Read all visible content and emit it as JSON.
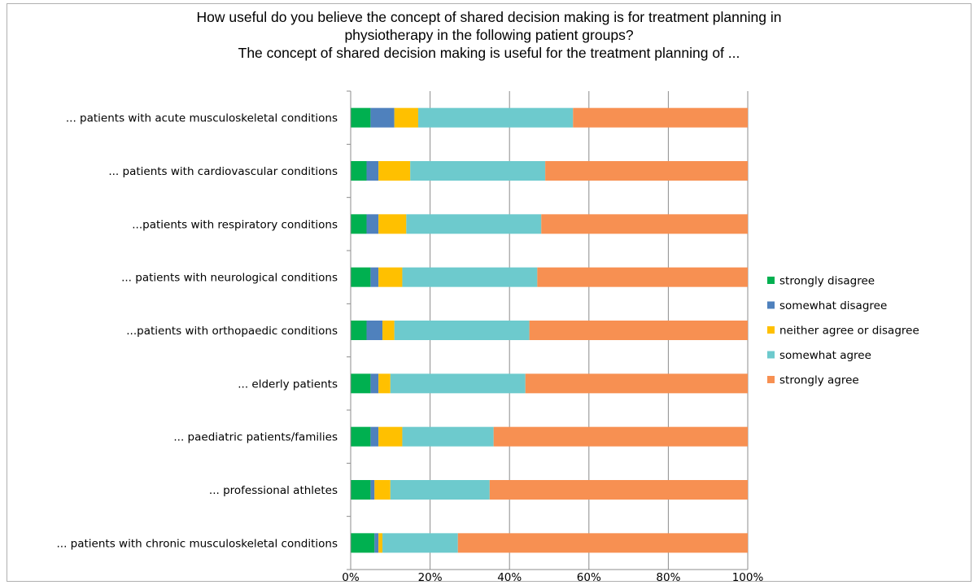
{
  "chart_data": {
    "type": "bar",
    "orientation": "horizontal",
    "stacked": true,
    "percent_stacked": true,
    "title_lines": [
      "How useful do you believe the concept of shared decision making is for treatment planning in",
      "physiotherapy in the following patient groups?",
      "The concept of shared decision making is useful for the treatment planning of ..."
    ],
    "categories": [
      "... patients with acute musculoskeletal conditions",
      "... patients with cardiovascular conditions",
      "...patients with respiratory conditions",
      "... patients with neurological conditions",
      "...patients with orthopaedic conditions",
      "... elderly patients",
      "... paediatric patients/families",
      "... professional athletes",
      "... patients with chronic musculoskeletal conditions"
    ],
    "series": [
      {
        "name": "strongly disagree",
        "color": "#00b050",
        "values": [
          5,
          4,
          4,
          5,
          4,
          5,
          5,
          5,
          6
        ]
      },
      {
        "name": "somewhat disagree",
        "color": "#4f81bd",
        "values": [
          6,
          3,
          3,
          2,
          4,
          2,
          2,
          1,
          1
        ]
      },
      {
        "name": "neither agree or disagree",
        "color": "#ffc000",
        "values": [
          6,
          8,
          7,
          6,
          3,
          3,
          6,
          4,
          1
        ]
      },
      {
        "name": "somewhat agree",
        "color": "#6dcacd",
        "values": [
          39,
          34,
          34,
          34,
          34,
          34,
          23,
          25,
          19
        ]
      },
      {
        "name": "strongly agree",
        "color": "#f79052",
        "values": [
          44,
          51,
          52,
          53,
          55,
          56,
          64,
          65,
          73
        ]
      }
    ],
    "x_ticks": [
      "0%",
      "20%",
      "40%",
      "60%",
      "80%",
      "100%"
    ],
    "xlim": [
      0,
      100
    ],
    "grid": true,
    "legend_position": "right"
  }
}
